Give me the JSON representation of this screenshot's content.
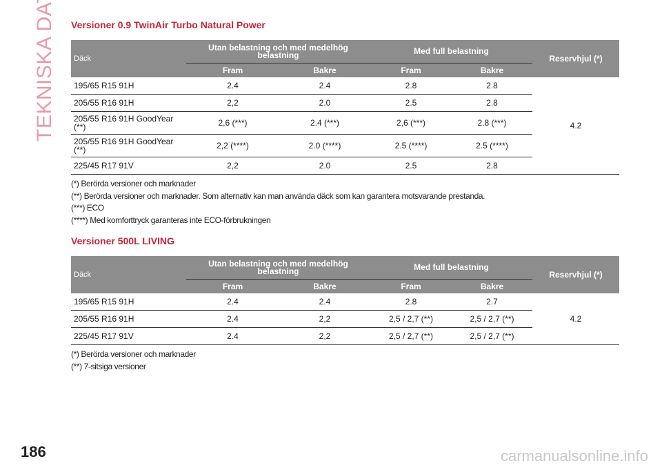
{
  "side_title": "TEKNISKA DATA",
  "page_number": "186",
  "watermark": "carmanualsonline.info",
  "sections": [
    {
      "title": "Versioner 0.9 TwinAir Turbo Natural Power",
      "table": {
        "headers": {
          "tire": "Däck",
          "unloaded": "Utan belastning och med medelhög belastning",
          "full": "Med full belastning",
          "spare": "Reservhjul (*)",
          "sub": [
            "Fram",
            "Bakre",
            "Fram",
            "Bakre"
          ]
        },
        "rows": [
          [
            "195/65 R15 91H",
            "2.4",
            "2.4",
            "2.8",
            "2.8"
          ],
          [
            "205/55 R16 91H",
            "2,2",
            "2.0",
            "2.5",
            "2.8"
          ],
          [
            "205/55 R16 91H GoodYear (**)",
            "2,6 (***)",
            "2.4 (***)",
            "2,6 (***)",
            "2.8 (***)"
          ],
          [
            "205/55 R16 91H GoodYear (**)",
            "2,2 (****)",
            "2.0 (****)",
            "2.5 (****)",
            "2.5 (****)"
          ],
          [
            "225/45 R17 91V",
            "2,2",
            "2.0",
            "2.5",
            "2.8"
          ]
        ],
        "spare_value": "4.2"
      },
      "footnotes": [
        "(*) Berörda versioner och marknader",
        "(**) Berörda versioner och marknader. Som alternativ kan man använda däck som kan garantera motsvarande prestanda.",
        "(***) ECO",
        "(****) Med komforttryck garanteras inte ECO-förbrukningen"
      ]
    },
    {
      "title": "Versioner 500L LIVING",
      "table": {
        "headers": {
          "tire": "Däck",
          "unloaded": "Utan belastning och med medelhög belastning",
          "full": "Med full belastning",
          "spare": "Reservhjul (*)",
          "sub": [
            "Fram",
            "Bakre",
            "Fram",
            "Bakre"
          ]
        },
        "rows": [
          [
            "195/65 R15 91H",
            "2.4",
            "2.4",
            "2.8",
            "2.7"
          ],
          [
            "205/55 R16 91H",
            "2.4",
            "2,2",
            "2,5 / 2,7 (**)",
            "2,5 / 2,7 (**)"
          ],
          [
            "225/45 R17 91V",
            "2.4",
            "2,2",
            "2,5 / 2,7 (**)",
            "2,5 / 2,7 (**)"
          ]
        ],
        "spare_value": "4.2"
      },
      "footnotes": [
        "(*) Berörda versioner och marknader",
        "(**) 7-sitsiga versioner"
      ]
    }
  ]
}
